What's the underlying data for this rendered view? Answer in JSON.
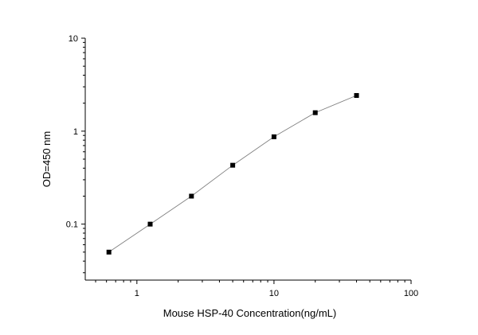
{
  "chart_data": {
    "type": "scatter",
    "title": "",
    "xlabel": "Mouse HSP-40  Concentration(ng/mL)",
    "ylabel": "OD=450 nm",
    "x_scale": "log",
    "y_scale": "log",
    "xlim": [
      0.42,
      100
    ],
    "ylim": [
      0.025,
      10
    ],
    "x_ticks": [
      1,
      10,
      100
    ],
    "x_tick_labels": [
      "1",
      "10",
      "100"
    ],
    "y_ticks": [
      0.1,
      1,
      10
    ],
    "y_tick_labels": [
      "0.1",
      "1",
      "10"
    ],
    "grid": false,
    "legend": "none",
    "series": [
      {
        "x": [
          0.625,
          1.25,
          2.5,
          5,
          10,
          20,
          40
        ],
        "y": [
          0.05,
          0.1,
          0.2,
          0.43,
          0.87,
          1.58,
          2.42
        ]
      }
    ],
    "colors": {
      "marker": "#000000",
      "curve": "#808080",
      "axis": "#000000"
    }
  }
}
